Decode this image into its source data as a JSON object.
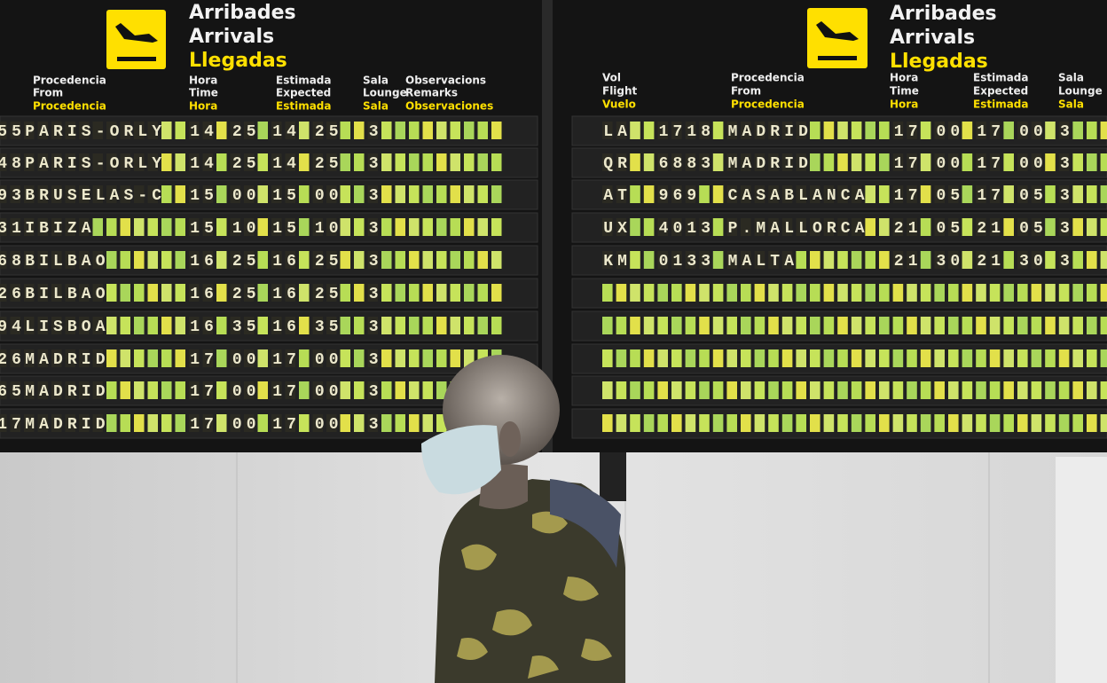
{
  "boards": [
    {
      "title": [
        "Arribades",
        "Arrivals",
        "Llegadas"
      ],
      "columns": [
        [
          "Procedencia",
          "From",
          "Procedencia"
        ],
        [
          "Hora",
          "Time",
          "Hora"
        ],
        [
          "Estimada",
          "Expected",
          "Estimada"
        ],
        [
          "Sala",
          "Lounge",
          "Sala"
        ],
        [
          "Observacions",
          "Remarks",
          "Observaciones"
        ]
      ],
      "rows": [
        {
          "flight": "55",
          "origin": "PARIS-ORLY",
          "scheduled": "14 25",
          "expected": "14 25",
          "lounge": "3"
        },
        {
          "flight": "48",
          "origin": "PARIS-ORLY",
          "scheduled": "14 25",
          "expected": "14 25",
          "lounge": "3"
        },
        {
          "flight": "93",
          "origin": "BRUSELAS-C",
          "scheduled": "15 00",
          "expected": "15 00",
          "lounge": "3"
        },
        {
          "flight": "31",
          "origin": "IBIZA",
          "scheduled": "15 10",
          "expected": "15 10",
          "lounge": "3"
        },
        {
          "flight": "68",
          "origin": "BILBAO",
          "scheduled": "16 25",
          "expected": "16 25",
          "lounge": "3"
        },
        {
          "flight": "26",
          "origin": "BILBAO",
          "scheduled": "16 25",
          "expected": "16 25",
          "lounge": "3"
        },
        {
          "flight": "94",
          "origin": "LISBOA",
          "scheduled": "16 35",
          "expected": "16 35",
          "lounge": "3"
        },
        {
          "flight": "26",
          "origin": "MADRID",
          "scheduled": "17 00",
          "expected": "17 00",
          "lounge": "3"
        },
        {
          "flight": "65",
          "origin": "MADRID",
          "scheduled": "17 00",
          "expected": "17 00",
          "lounge": "3"
        },
        {
          "flight": "17",
          "origin": "MADRID",
          "scheduled": "17 00",
          "expected": "17 00",
          "lounge": "3"
        }
      ]
    },
    {
      "title": [
        "Arribades",
        "Arrivals",
        "Llegadas"
      ],
      "columns": [
        [
          "Vol",
          "Flight",
          "Vuelo"
        ],
        [
          "Procedencia",
          "From",
          "Procedencia"
        ],
        [
          "Hora",
          "Time",
          "Hora"
        ],
        [
          "Estimada",
          "Expected",
          "Estimada"
        ],
        [
          "Sala",
          "Lounge",
          "Sala"
        ]
      ],
      "rows": [
        {
          "airline": "LA",
          "flight": "1718",
          "origin": "MADRID",
          "scheduled": "17 00",
          "expected": "17 00",
          "lounge": "3"
        },
        {
          "airline": "QR",
          "flight": "6883",
          "origin": "MADRID",
          "scheduled": "17 00",
          "expected": "17 00",
          "lounge": "3"
        },
        {
          "airline": "AT",
          "flight": "969",
          "origin": "CASABLANCA",
          "scheduled": "17 05",
          "expected": "17 05",
          "lounge": "3"
        },
        {
          "airline": "UX",
          "flight": "4013",
          "origin": "P.MALLORCA",
          "scheduled": "21 05",
          "expected": "21 05",
          "lounge": "3"
        },
        {
          "airline": "KM",
          "flight": "0133",
          "origin": "MALTA",
          "scheduled": "21 30",
          "expected": "21 30",
          "lounge": "3"
        }
      ]
    }
  ]
}
